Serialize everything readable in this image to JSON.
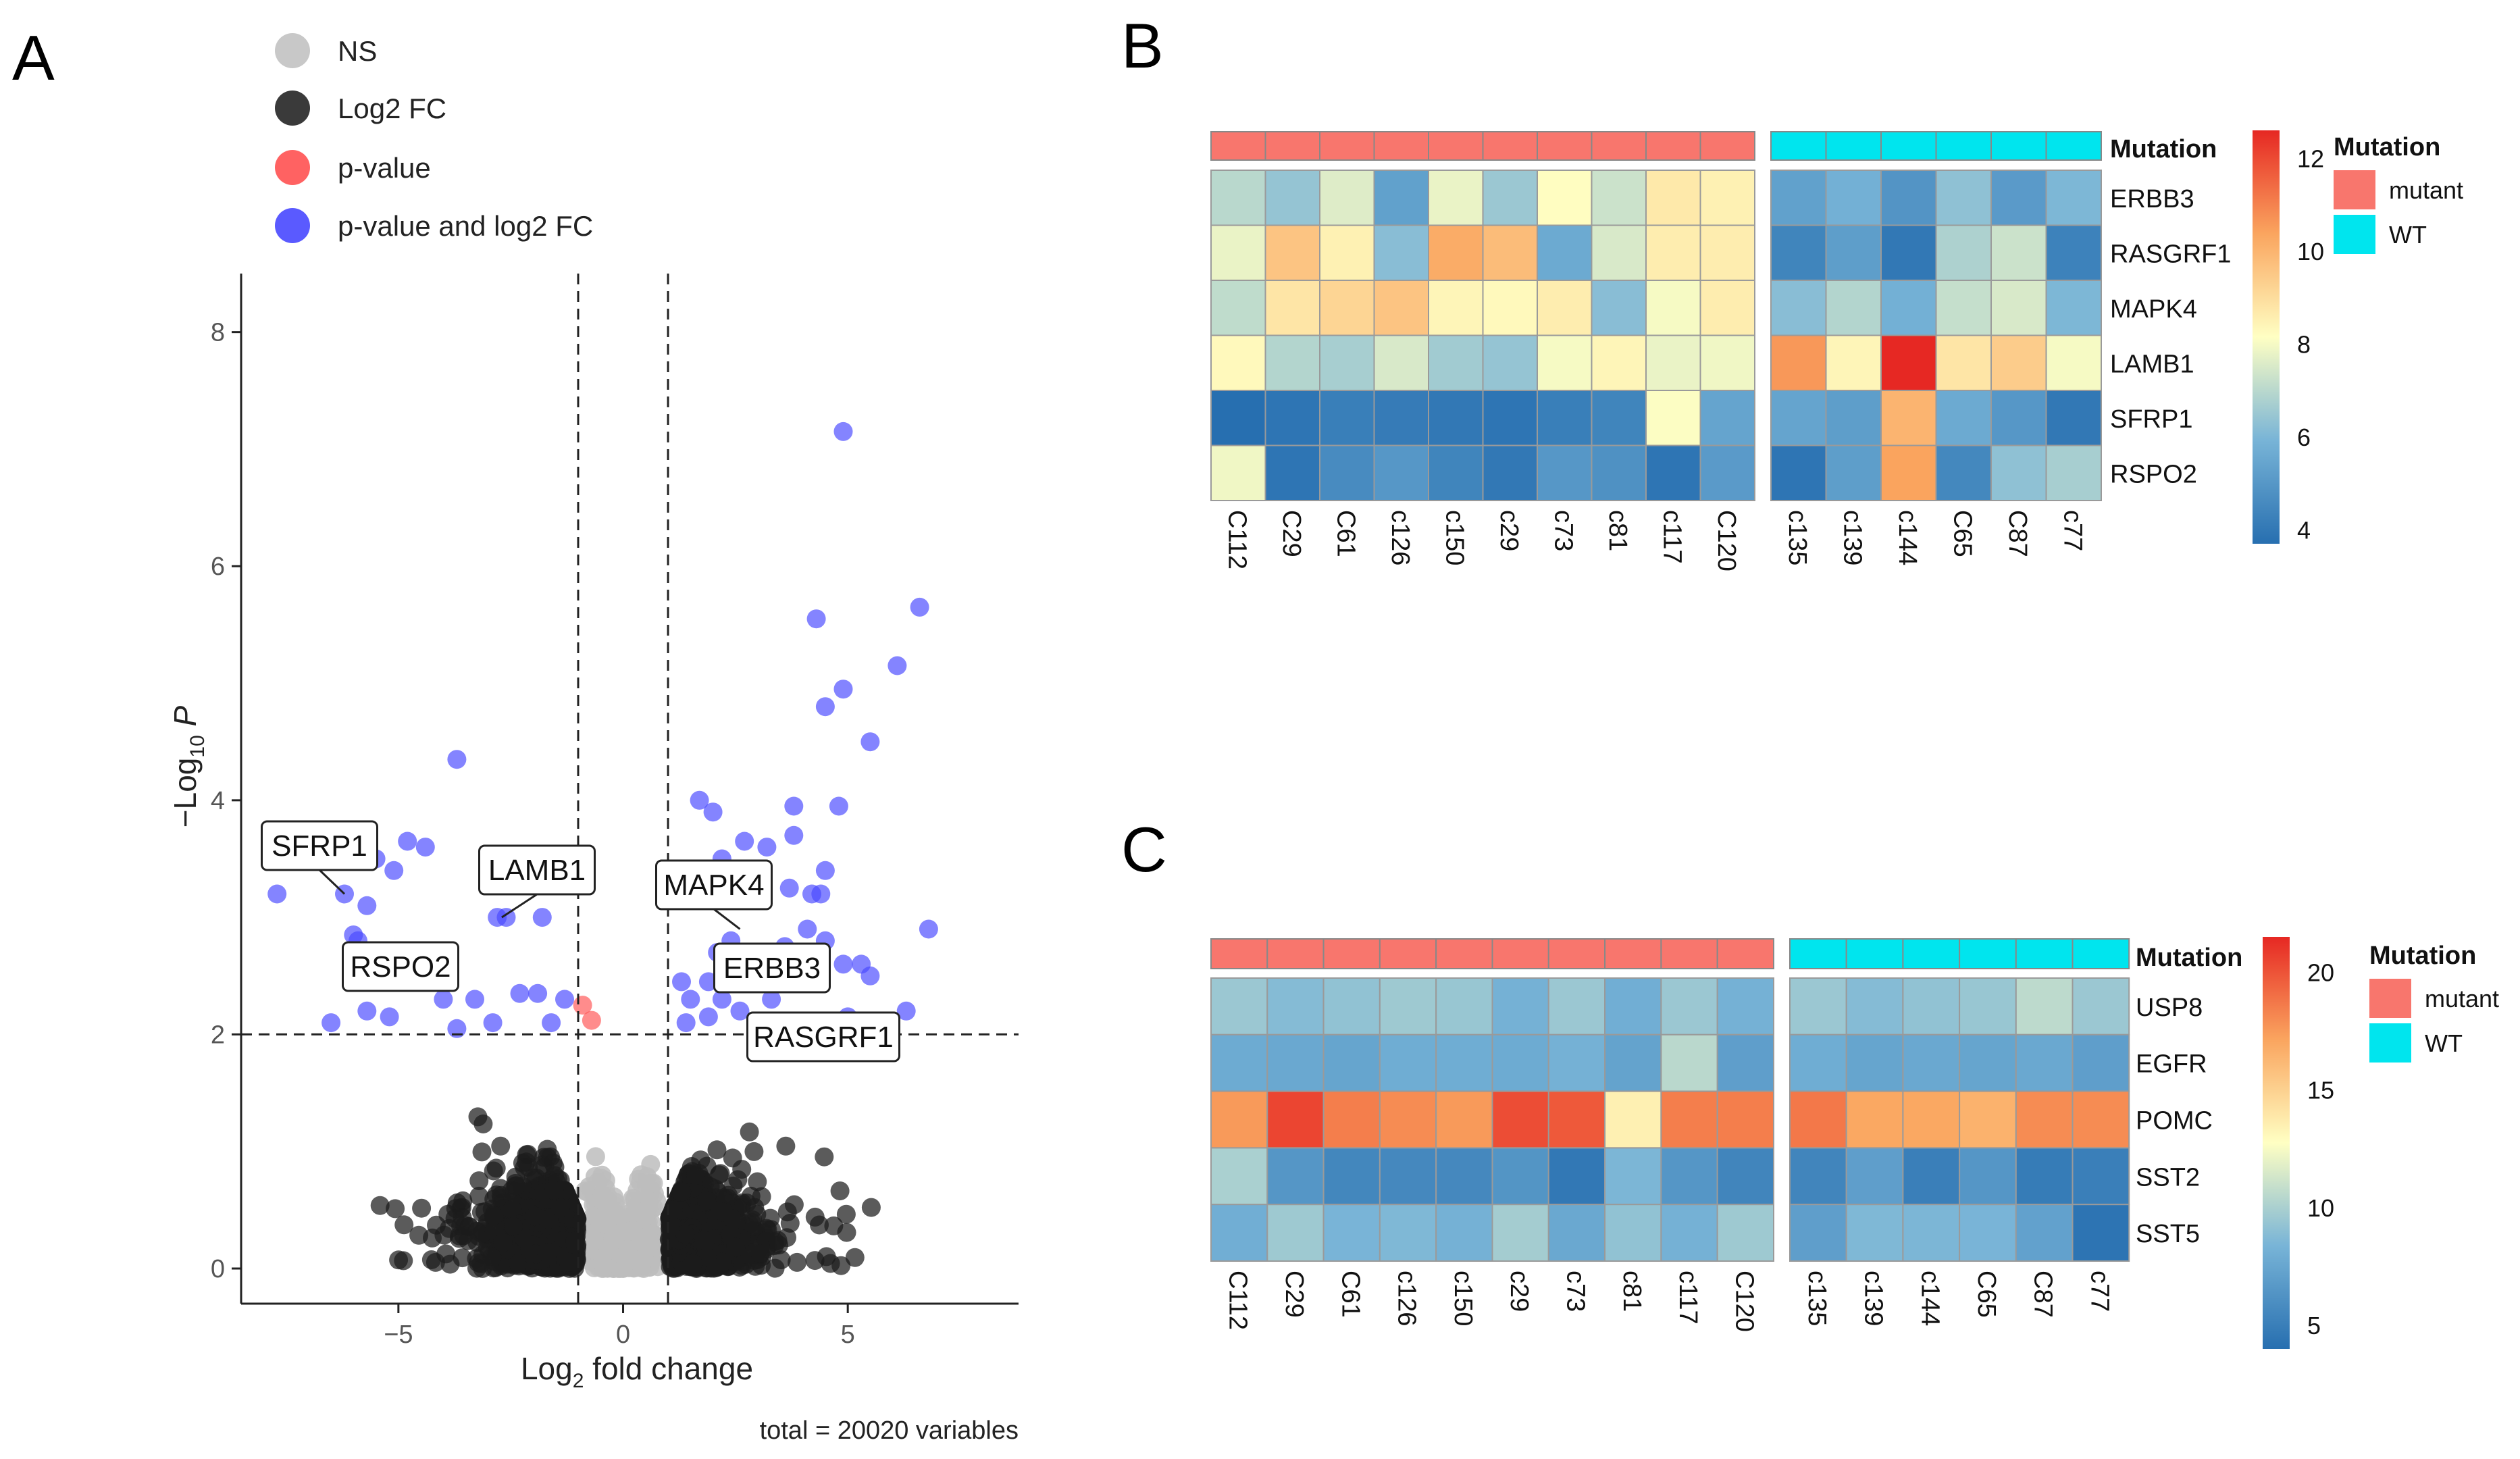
{
  "figure": {
    "panel_a_letter": "A",
    "panel_b_letter": "B",
    "panel_c_letter": "C"
  },
  "chart_data": [
    {
      "type": "scatter",
      "subtype": "volcano",
      "panel": "A",
      "title": "",
      "xlabel": "Log2 fold change",
      "ylabel": "-Log10 P",
      "xlim": [
        -8.5,
        8.8
      ],
      "ylim": [
        -0.3,
        8.5
      ],
      "x_ticks": [
        -5,
        0,
        5
      ],
      "x_tick_labels": [
        "−5",
        "0",
        "5"
      ],
      "y_ticks": [
        0,
        2,
        4,
        6,
        8
      ],
      "y_tick_labels": [
        "0",
        "2",
        "4",
        "6",
        "8"
      ],
      "fc_cutoff": 1,
      "p_cutoff": 2,
      "caption": "total = 20020 variables",
      "legend": {
        "position": "top-left",
        "items": [
          {
            "key": "ns",
            "label": "NS",
            "color": "#c8c8c8"
          },
          {
            "key": "fc",
            "label": "Log2 FC",
            "color": "#3a3a3a"
          },
          {
            "key": "p",
            "label": "p-value",
            "color": "#ff5a5a"
          },
          {
            "key": "both",
            "label": "p-value and log2 FC",
            "color": "#5050ff"
          }
        ]
      },
      "colors": {
        "ns": "#bdbdbd",
        "fc": "#1c1c1c",
        "p": "#ff5555",
        "both": "#4a4aff"
      },
      "series": [
        {
          "name": "p-value and log2 FC",
          "key": "both",
          "points": [
            [
              4.9,
              7.15
            ],
            [
              6.6,
              5.65
            ],
            [
              4.3,
              5.55
            ],
            [
              6.1,
              5.15
            ],
            [
              4.9,
              4.95
            ],
            [
              4.5,
              4.8
            ],
            [
              5.5,
              4.5
            ],
            [
              -3.7,
              4.35
            ],
            [
              1.7,
              4.0
            ],
            [
              3.8,
              3.95
            ],
            [
              4.8,
              3.95
            ],
            [
              2.0,
              3.9
            ],
            [
              3.8,
              3.7
            ],
            [
              -4.8,
              3.65
            ],
            [
              -4.4,
              3.6
            ],
            [
              -5.5,
              3.5
            ],
            [
              -5.1,
              3.4
            ],
            [
              2.7,
              3.65
            ],
            [
              3.2,
              3.6
            ],
            [
              4.5,
              3.4
            ],
            [
              2.2,
              3.5
            ],
            [
              3.7,
              3.25
            ],
            [
              4.2,
              3.2
            ],
            [
              -2.8,
              3.0
            ],
            [
              -2.6,
              3.0
            ],
            [
              -1.8,
              3.0
            ],
            [
              4.4,
              3.2
            ],
            [
              6.8,
              2.9
            ],
            [
              -6.2,
              3.2
            ],
            [
              -7.7,
              3.2
            ],
            [
              -5.7,
              3.1
            ],
            [
              -6.0,
              2.85
            ],
            [
              -5.9,
              2.8
            ],
            [
              4.1,
              2.9
            ],
            [
              4.5,
              2.8
            ],
            [
              3.6,
              2.75
            ],
            [
              2.4,
              2.8
            ],
            [
              2.1,
              2.7
            ],
            [
              4.9,
              2.6
            ],
            [
              5.3,
              2.6
            ],
            [
              5.5,
              2.5
            ],
            [
              3.1,
              2.5
            ],
            [
              3.3,
              2.3
            ],
            [
              1.9,
              2.45
            ],
            [
              2.2,
              2.3
            ],
            [
              -2.3,
              2.35
            ],
            [
              -1.9,
              2.35
            ],
            [
              -1.3,
              2.3
            ],
            [
              -3.3,
              2.3
            ],
            [
              -4.0,
              2.3
            ],
            [
              -5.2,
              2.15
            ],
            [
              -5.7,
              2.2
            ],
            [
              -6.5,
              2.1
            ],
            [
              -2.9,
              2.1
            ],
            [
              -3.7,
              2.05
            ],
            [
              -1.6,
              2.1
            ],
            [
              1.3,
              2.45
            ],
            [
              1.5,
              2.3
            ],
            [
              1.9,
              2.15
            ],
            [
              2.6,
              2.2
            ],
            [
              1.4,
              2.1
            ],
            [
              5.0,
              2.15
            ],
            [
              6.3,
              2.2
            ],
            [
              4.2,
              2.5
            ],
            [
              2.9,
              2.65
            ]
          ]
        },
        {
          "name": "p-value",
          "key": "p",
          "points": [
            [
              -0.9,
              2.25
            ],
            [
              -0.7,
              2.12
            ]
          ]
        }
      ],
      "labels": [
        {
          "text": "SFRP1",
          "x": -6.2,
          "y": 3.2
        },
        {
          "text": "LAMB1",
          "x": -2.7,
          "y": 3.0
        },
        {
          "text": "MAPK4",
          "x": 2.6,
          "y": 2.9
        },
        {
          "text": "RSPO2",
          "x": -5.6,
          "y": 2.75
        },
        {
          "text": "ERBB3",
          "x": 3.2,
          "y": 2.55
        },
        {
          "text": "RASGRF1",
          "x": 4.1,
          "y": 2.15
        }
      ]
    },
    {
      "type": "heatmap",
      "panel": "B",
      "title": "",
      "columns": [
        "C112",
        "C29",
        "C61",
        "c126",
        "c150",
        "c29",
        "c73",
        "c81",
        "c117",
        "C120",
        "c135",
        "c139",
        "c144",
        "C65",
        "C87",
        "c77"
      ],
      "rows": [
        "ERBB3",
        "RASGRF1",
        "MAPK4",
        "LAMB1",
        "SFRP1",
        "RSPO2"
      ],
      "annotation_title": "Mutation",
      "mutation": [
        "mutant",
        "mutant",
        "mutant",
        "mutant",
        "mutant",
        "mutant",
        "mutant",
        "mutant",
        "mutant",
        "mutant",
        "WT",
        "WT",
        "WT",
        "WT",
        "WT",
        "WT"
      ],
      "mutation_colors": {
        "mutant": "#f8766d",
        "WT": "#00e5ee"
      },
      "legend_title": "Mutation",
      "legend_items": [
        "mutant",
        "WT"
      ],
      "scale_min": 3.7,
      "scale_max": 12.6,
      "scale_ticks": [
        12,
        10,
        8,
        6,
        4
      ],
      "values": [
        [
          7.0,
          6.4,
          7.6,
          5.3,
          7.8,
          6.5,
          8.2,
          7.3,
          8.7,
          8.5,
          5.3,
          5.8,
          4.9,
          6.3,
          5.1,
          6.0
        ],
        [
          7.8,
          9.6,
          8.5,
          6.2,
          10.2,
          9.8,
          5.6,
          7.5,
          8.6,
          8.6,
          4.4,
          5.2,
          4.0,
          6.8,
          7.3,
          4.3
        ],
        [
          7.1,
          8.8,
          9.2,
          9.6,
          8.4,
          8.3,
          8.6,
          6.2,
          8.0,
          8.6,
          6.2,
          6.9,
          5.8,
          7.2,
          7.5,
          6.0
        ],
        [
          8.3,
          6.9,
          6.7,
          7.5,
          6.6,
          6.4,
          8.0,
          8.4,
          7.8,
          7.9,
          10.6,
          8.4,
          12.6,
          8.8,
          9.4,
          8.0
        ],
        [
          3.7,
          3.9,
          4.2,
          4.1,
          4.0,
          3.9,
          4.2,
          4.4,
          8.1,
          5.4,
          5.4,
          5.2,
          10.0,
          5.6,
          5.0,
          4.0
        ],
        [
          7.9,
          3.9,
          4.6,
          5.0,
          4.4,
          4.0,
          5.0,
          4.8,
          3.9,
          5.1,
          3.9,
          5.2,
          10.4,
          4.5,
          6.3,
          6.7
        ]
      ]
    },
    {
      "type": "heatmap",
      "panel": "C",
      "title": "",
      "columns": [
        "C112",
        "C29",
        "C61",
        "c126",
        "c150",
        "c29",
        "c73",
        "c81",
        "c117",
        "C120",
        "c135",
        "c139",
        "c144",
        "C65",
        "C87",
        "c77"
      ],
      "rows": [
        "USP8",
        "EGFR",
        "POMC",
        "SST2",
        "SST5"
      ],
      "annotation_title": "Mutation",
      "mutation": [
        "mutant",
        "mutant",
        "mutant",
        "mutant",
        "mutant",
        "mutant",
        "mutant",
        "mutant",
        "mutant",
        "mutant",
        "WT",
        "WT",
        "WT",
        "WT",
        "WT",
        "WT"
      ],
      "mutation_colors": {
        "mutant": "#f8766d",
        "WT": "#00e5ee"
      },
      "legend_title": "Mutation",
      "legend_items": [
        "mutant",
        "WT"
      ],
      "scale_min": 4,
      "scale_max": 21.5,
      "scale_ticks": [
        20,
        15,
        10,
        5
      ],
      "values": [
        [
          9.5,
          8.8,
          9.2,
          9.6,
          9.4,
          8.2,
          9.5,
          8.0,
          9.5,
          8.2,
          9.5,
          8.8,
          9.2,
          9.4,
          10.6,
          9.5
        ],
        [
          7.8,
          7.6,
          7.4,
          7.9,
          7.9,
          7.8,
          8.2,
          7.3,
          10.5,
          7.0,
          7.9,
          7.4,
          7.6,
          7.4,
          7.6,
          7.0
        ],
        [
          17.5,
          20.5,
          18.5,
          18.0,
          17.5,
          20.2,
          19.8,
          13.5,
          18.5,
          18.5,
          18.7,
          17.0,
          17.0,
          16.5,
          18.0,
          18.0
        ],
        [
          10.0,
          6.5,
          5.5,
          5.6,
          5.6,
          6.4,
          4.6,
          8.5,
          6.5,
          5.4,
          5.4,
          7.0,
          5.0,
          6.5,
          4.8,
          5.0
        ],
        [
          8.0,
          9.6,
          8.4,
          8.6,
          8.2,
          9.8,
          7.6,
          9.2,
          8.2,
          9.6,
          7.0,
          8.6,
          8.5,
          8.4,
          7.2,
          4.3
        ]
      ]
    }
  ]
}
